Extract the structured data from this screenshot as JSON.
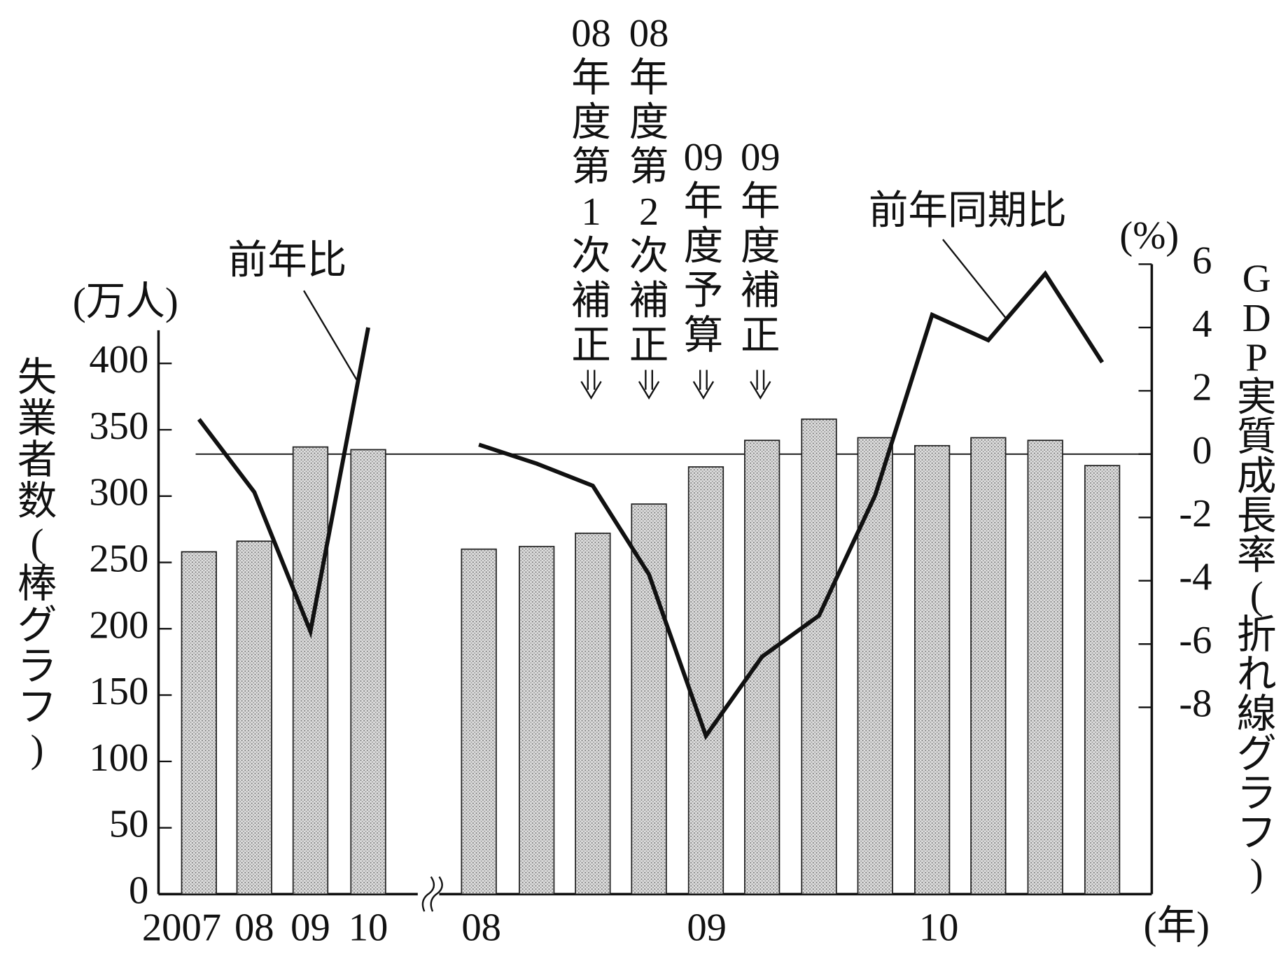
{
  "chart_data": {
    "type": "combo",
    "categories": [
      "2007",
      "08",
      "09",
      "10",
      "08",
      null,
      null,
      null,
      "09",
      null,
      null,
      null,
      "10",
      null,
      null,
      null
    ],
    "x_unit": "(年)",
    "bars": {
      "color": "#cfcfcf",
      "values": [
        258,
        266,
        337,
        335,
        260,
        262,
        272,
        294,
        322,
        342,
        358,
        344,
        338,
        344,
        342,
        323
      ]
    },
    "series": [
      {
        "name": "前年比",
        "color": "#111111",
        "axis": "y2",
        "values": [
          1.1,
          -1.2,
          -5.6,
          4.0,
          null,
          null,
          null,
          null,
          null,
          null,
          null,
          null,
          null,
          null,
          null,
          null
        ]
      },
      {
        "name": "前年同期比",
        "color": "#111111",
        "axis": "y2",
        "values": [
          null,
          null,
          null,
          null,
          0.3,
          -0.3,
          -1.0,
          -3.8,
          -8.9,
          -6.4,
          -5.1,
          -1.3,
          4.4,
          3.6,
          5.7,
          2.9
        ]
      }
    ],
    "y_label": "失業者数(棒グラフ)",
    "y_unit": "(万人)",
    "ylim": [
      0,
      425
    ],
    "yticks": [
      0,
      50,
      100,
      150,
      200,
      250,
      300,
      350,
      400
    ],
    "y2_label": "GDP実質成長率(折れ線グラフ)",
    "y2_unit": "(%)",
    "y2lim": [
      -13.9,
      6
    ],
    "y2ticks": [
      -8,
      -6,
      -4,
      -2,
      0,
      2,
      4,
      6
    ],
    "annotations": [
      "08年度第1次補正",
      "08年度第2次補正",
      "09年度予算",
      "09年度補正"
    ]
  }
}
